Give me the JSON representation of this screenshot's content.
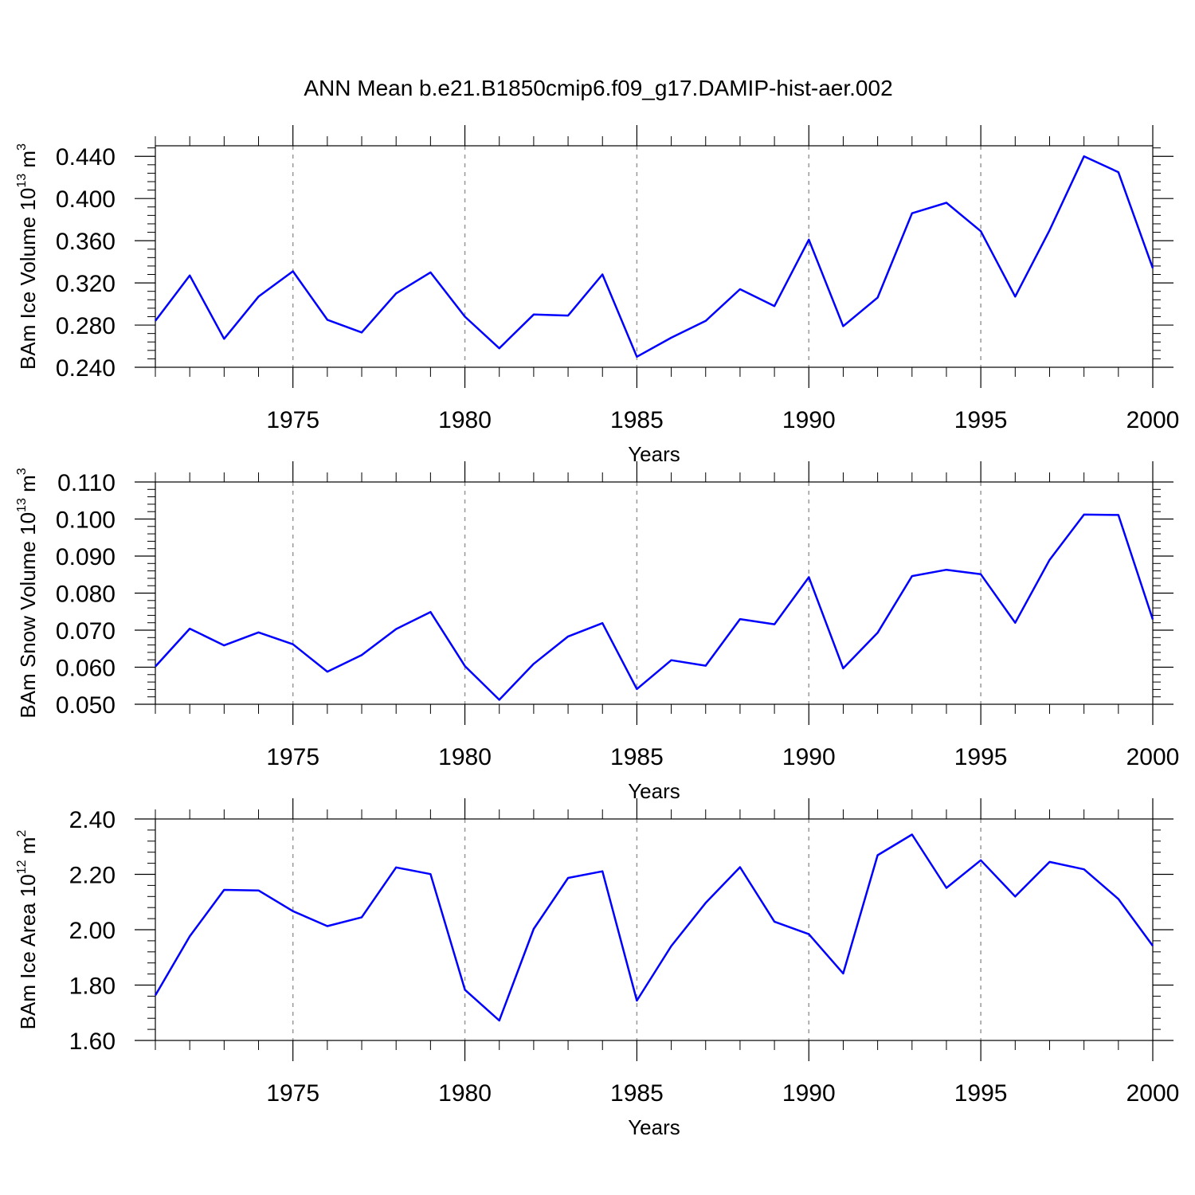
{
  "title": "ANN Mean b.e21.B1850cmip6.f09_g17.DAMIP-hist-aer.002",
  "line_color": "#0000ff",
  "chart_data": [
    {
      "type": "line",
      "xlabel": "Years",
      "ylabel": {
        "text": "BAm Ice Volume 10",
        "exp": "13",
        "unit": " m",
        "unit_exp": "3"
      },
      "xlim": [
        1971,
        2000
      ],
      "ylim": [
        0.24,
        0.45
      ],
      "xticks": [
        1975,
        1980,
        1985,
        1990,
        1995,
        2000
      ],
      "yticks": [
        0.24,
        0.28,
        0.32,
        0.36,
        0.4,
        0.44
      ],
      "ytick_labels": [
        "0.240",
        "0.280",
        "0.320",
        "0.360",
        "0.400",
        "0.440"
      ],
      "grid": "vertical dashed at major x ticks",
      "x": [
        1971,
        1972,
        1973,
        1974,
        1975,
        1976,
        1977,
        1978,
        1979,
        1980,
        1981,
        1982,
        1983,
        1984,
        1985,
        1986,
        1987,
        1988,
        1989,
        1990,
        1991,
        1992,
        1993,
        1994,
        1995,
        1996,
        1997,
        1998,
        1999,
        2000
      ],
      "y": [
        0.284,
        0.327,
        0.267,
        0.307,
        0.331,
        0.285,
        0.273,
        0.31,
        0.33,
        0.288,
        0.258,
        0.29,
        0.289,
        0.328,
        0.25,
        0.268,
        0.284,
        0.314,
        0.298,
        0.361,
        0.279,
        0.306,
        0.386,
        0.396,
        0.369,
        0.307,
        0.37,
        0.44,
        0.425,
        0.334
      ]
    },
    {
      "type": "line",
      "xlabel": "Years",
      "ylabel": {
        "text": "BAm Snow Volume 10",
        "exp": "13",
        "unit": " m",
        "unit_exp": "3"
      },
      "xlim": [
        1971,
        2000
      ],
      "ylim": [
        0.05,
        0.11
      ],
      "xticks": [
        1975,
        1980,
        1985,
        1990,
        1995,
        2000
      ],
      "yticks": [
        0.05,
        0.06,
        0.07,
        0.08,
        0.09,
        0.1,
        0.11
      ],
      "ytick_labels": [
        "0.050",
        "0.060",
        "0.070",
        "0.080",
        "0.090",
        "0.100",
        "0.110"
      ],
      "grid": "vertical dashed at major x ticks",
      "x": [
        1971,
        1972,
        1973,
        1974,
        1975,
        1976,
        1977,
        1978,
        1979,
        1980,
        1981,
        1982,
        1983,
        1984,
        1985,
        1986,
        1987,
        1988,
        1989,
        1990,
        1991,
        1992,
        1993,
        1994,
        1995,
        1996,
        1997,
        1998,
        1999,
        2000
      ],
      "y": [
        0.0602,
        0.0704,
        0.0659,
        0.0694,
        0.0662,
        0.0588,
        0.0633,
        0.0703,
        0.0749,
        0.0603,
        0.0512,
        0.0609,
        0.0683,
        0.0719,
        0.0541,
        0.0619,
        0.0604,
        0.073,
        0.0716,
        0.0843,
        0.0597,
        0.0693,
        0.0846,
        0.0863,
        0.0851,
        0.072,
        0.089,
        0.1012,
        0.1011,
        0.0729
      ]
    },
    {
      "type": "line",
      "xlabel": "Years",
      "ylabel": {
        "text": "BAm Ice Area 10",
        "exp": "12",
        "unit": " m",
        "unit_exp": "2"
      },
      "xlim": [
        1971,
        2000
      ],
      "ylim": [
        1.6,
        2.4
      ],
      "xticks": [
        1975,
        1980,
        1985,
        1990,
        1995,
        2000
      ],
      "yticks": [
        1.6,
        1.8,
        2.0,
        2.2,
        2.4
      ],
      "ytick_labels": [
        "1.60",
        "1.80",
        "2.00",
        "2.20",
        "2.40"
      ],
      "grid": "vertical dashed at major x ticks",
      "x": [
        1971,
        1972,
        1973,
        1974,
        1975,
        1976,
        1977,
        1978,
        1979,
        1980,
        1981,
        1982,
        1983,
        1984,
        1985,
        1986,
        1987,
        1988,
        1989,
        1990,
        1991,
        1992,
        1993,
        1994,
        1995,
        1996,
        1997,
        1998,
        1999,
        2000
      ],
      "y": [
        1.763,
        1.976,
        2.144,
        2.142,
        2.067,
        2.013,
        2.045,
        2.225,
        2.201,
        1.783,
        1.672,
        2.003,
        2.187,
        2.211,
        1.744,
        1.941,
        2.097,
        2.226,
        2.029,
        1.984,
        1.842,
        2.269,
        2.344,
        2.151,
        2.251,
        2.12,
        2.245,
        2.218,
        2.111,
        1.942
      ]
    }
  ]
}
